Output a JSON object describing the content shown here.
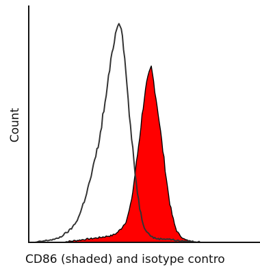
{
  "chart_data": {
    "type": "area",
    "title": "",
    "xlabel": "CD86 (shaded) and isotype contro",
    "ylabel": "Count",
    "x_tick_labels": [],
    "y_tick_labels": [],
    "grid": false,
    "legend": "none",
    "xlim": [
      0,
      100
    ],
    "ylim": [
      0,
      100
    ],
    "series": [
      {
        "style": "outline",
        "color": "#333333",
        "x": [
          3,
          6,
          9,
          12,
          14,
          16,
          18,
          20,
          22,
          24,
          26,
          28,
          30,
          31,
          32,
          33,
          34,
          35,
          36,
          37,
          38,
          39,
          40,
          41,
          42,
          43,
          44,
          45,
          46,
          47,
          48,
          49,
          50,
          52,
          54,
          56,
          58,
          60,
          63,
          66,
          70,
          75
        ],
        "y": [
          0,
          0.5,
          1,
          1.5,
          2.5,
          4,
          5.5,
          8,
          12,
          18,
          25,
          33,
          42,
          47,
          55,
          60,
          68,
          75,
          82,
          88,
          93,
          96,
          94,
          85,
          74,
          62,
          50,
          40,
          30,
          22,
          15,
          10,
          6.5,
          3.5,
          2,
          1.5,
          1.5,
          1.5,
          1,
          0.5,
          0.5,
          0
        ]
      },
      {
        "style": "filled",
        "color": "#ff0000",
        "x": [
          14,
          18,
          22,
          26,
          30,
          33,
          36,
          38,
          40,
          42,
          43,
          44,
          45,
          46,
          47,
          48,
          49,
          50,
          51,
          52,
          53,
          54,
          55,
          56,
          57,
          58,
          59,
          60,
          61,
          62,
          63,
          64,
          65,
          66,
          67,
          68,
          70,
          72
        ],
        "y": [
          0,
          0.5,
          1,
          1.5,
          2,
          2.5,
          3,
          4,
          6,
          9,
          12,
          16,
          22,
          30,
          38,
          46,
          55,
          63,
          69,
          73,
          76,
          70,
          63,
          56,
          48,
          40,
          32,
          24,
          17,
          12,
          8,
          5,
          3.5,
          2.5,
          1.5,
          1,
          0.5,
          0
        ]
      }
    ]
  }
}
